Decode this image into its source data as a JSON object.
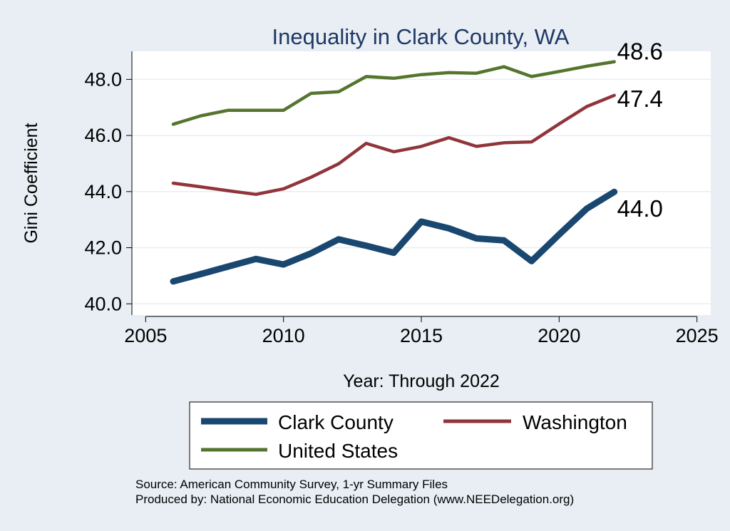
{
  "chart_data": {
    "type": "line",
    "title": "Inequality in Clark County, WA",
    "xlabel": "Year: Through 2022",
    "ylabel": "Gini Coefficient",
    "xlim": [
      2004.5,
      2025.5
    ],
    "ylim": [
      39.6,
      49.0
    ],
    "xticks": [
      2005,
      2010,
      2015,
      2020,
      2025
    ],
    "yticks": [
      40.0,
      42.0,
      44.0,
      46.0,
      48.0
    ],
    "ytick_labels": [
      "40.0",
      "42.0",
      "44.0",
      "46.0",
      "48.0"
    ],
    "grid": true,
    "legend_position": "bottom",
    "series": [
      {
        "name": "Clark County",
        "color": "#1a476f",
        "width": "thick",
        "x": [
          2006,
          2007,
          2008,
          2009,
          2010,
          2011,
          2012,
          2013,
          2014,
          2015,
          2016,
          2017,
          2018,
          2019,
          2020,
          2021,
          2022
        ],
        "values": [
          40.8,
          41.06,
          41.33,
          41.6,
          41.4,
          41.8,
          42.3,
          42.07,
          41.82,
          42.93,
          42.69,
          42.33,
          42.26,
          41.52,
          42.47,
          43.39,
          43.99
        ],
        "end_label": "44.0"
      },
      {
        "name": "Washington",
        "color": "#90353b",
        "width": "medium",
        "x": [
          2006,
          2007,
          2008,
          2009,
          2010,
          2011,
          2012,
          2013,
          2014,
          2015,
          2016,
          2017,
          2018,
          2019,
          2020,
          2021,
          2022
        ],
        "values": [
          44.3,
          44.17,
          44.03,
          43.9,
          44.1,
          44.51,
          44.99,
          45.72,
          45.42,
          45.61,
          45.92,
          45.61,
          45.74,
          45.77,
          46.41,
          47.03,
          47.43
        ],
        "end_label": "47.4"
      },
      {
        "name": "United States",
        "color": "#55752f",
        "width": "medium",
        "x": [
          2006,
          2007,
          2008,
          2009,
          2010,
          2011,
          2012,
          2013,
          2014,
          2015,
          2016,
          2017,
          2018,
          2019,
          2020,
          2021,
          2022
        ],
        "values": [
          46.4,
          46.7,
          46.9,
          46.9,
          46.9,
          47.5,
          47.56,
          48.1,
          48.04,
          48.17,
          48.24,
          48.22,
          48.45,
          48.1,
          48.28,
          48.47,
          48.63
        ],
        "end_label": "48.6"
      }
    ]
  },
  "source_lines": [
    "Source: American Community Survey, 1-yr Summary Files",
    "Produced by: National Economic Education Delegation (www.NEEDelegation.org)"
  ]
}
